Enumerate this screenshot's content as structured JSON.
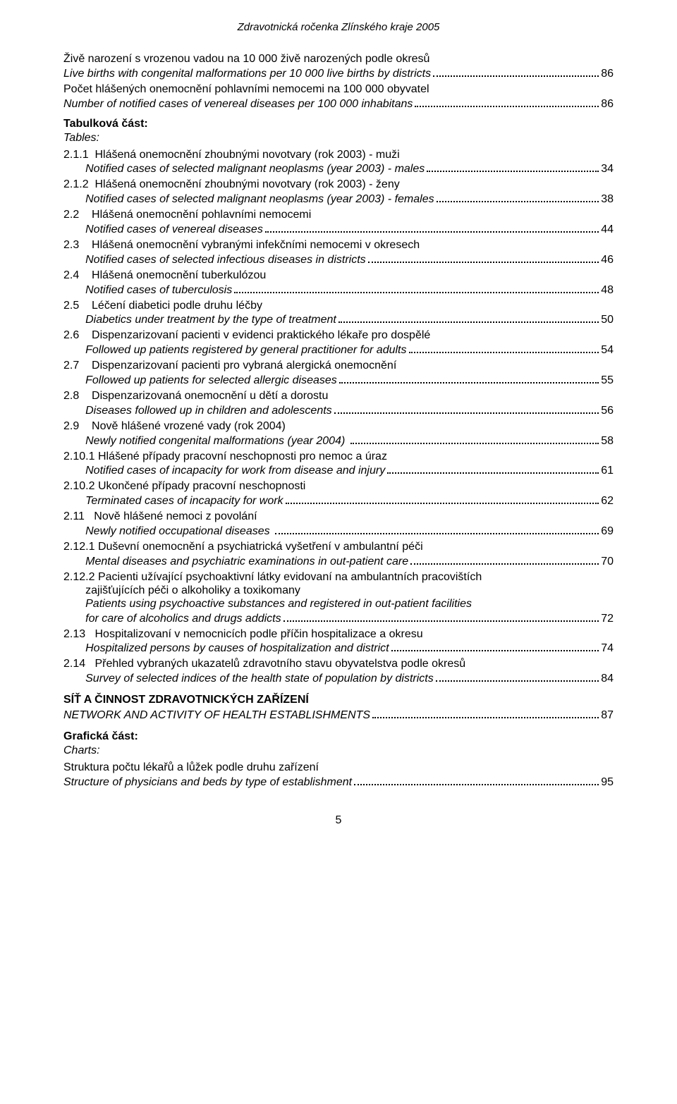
{
  "header": "Zdravotnická ročenka Zlínského kraje 2005",
  "pre_entries": [
    {
      "lines": [
        {
          "text": "Živě narození s vrozenou vadou na 10 000 živě narozených podle okresů",
          "italic": false
        }
      ],
      "last": {
        "text": "Live births with congenital malformations per 10 000 live births by districts",
        "italic": true,
        "page": "86"
      }
    },
    {
      "lines": [
        {
          "text": "Počet hlášených onemocnění pohlavními nemocemi na 100 000 obyvatel",
          "italic": false
        }
      ],
      "last": {
        "text": "Number of notified cases of venereal diseases per 100 000 inhabitans",
        "italic": true,
        "page": "86"
      }
    }
  ],
  "tabular_title": "Tabulková část:",
  "tabular_sub": "Tables:",
  "toc": [
    {
      "num": "2.1.1  ",
      "lines": [
        {
          "text": "Hlášená onemocnění zhoubnými novotvary (rok 2003) - muži",
          "italic": false
        }
      ],
      "last": {
        "text": "Notified cases of selected malignant neoplasms (year 2003) - males",
        "italic": true,
        "page": "34"
      }
    },
    {
      "num": "2.1.2  ",
      "lines": [
        {
          "text": "Hlášená onemocnění zhoubnými novotvary (rok 2003) - ženy",
          "italic": false
        }
      ],
      "last": {
        "text": "Notified cases of selected malignant neoplasms (year 2003) - females",
        "italic": true,
        "page": "38"
      }
    },
    {
      "num": "2.2    ",
      "lines": [
        {
          "text": "Hlášená onemocnění pohlavními nemocemi",
          "italic": false
        }
      ],
      "last": {
        "text": "Notified cases of venereal diseases",
        "italic": true,
        "page": "44"
      }
    },
    {
      "num": "2.3    ",
      "lines": [
        {
          "text": "Hlášená onemocnění vybranými infekčními nemocemi v okresech",
          "italic": false
        }
      ],
      "last": {
        "text": "Notified cases of selected infectious diseases in districts",
        "italic": true,
        "page": "46"
      }
    },
    {
      "num": "2.4    ",
      "lines": [
        {
          "text": "Hlášená onemocnění tuberkulózou",
          "italic": false
        }
      ],
      "last": {
        "text": "Notified cases of tuberculosis",
        "italic": true,
        "page": "48"
      }
    },
    {
      "num": "2.5    ",
      "lines": [
        {
          "text": "Léčení diabetici podle druhu léčby",
          "italic": false
        }
      ],
      "last": {
        "text": "Diabetics under treatment by the type of treatment",
        "italic": true,
        "page": "50"
      }
    },
    {
      "num": "2.6    ",
      "lines": [
        {
          "text": "Dispenzarizovaní pacienti v evidenci praktického lékaře pro dospělé",
          "italic": false
        }
      ],
      "last": {
        "text": "Followed up patients registered by general practitioner for adults",
        "italic": true,
        "page": "54"
      }
    },
    {
      "num": "2.7    ",
      "lines": [
        {
          "text": "Dispenzarizovaní pacienti pro vybraná alergická onemocnění",
          "italic": false
        }
      ],
      "last": {
        "text": "Followed up patients for selected allergic diseases",
        "italic": true,
        "page": "55"
      }
    },
    {
      "num": "2.8    ",
      "lines": [
        {
          "text": "Dispenzarizovaná onemocnění u dětí a dorostu",
          "italic": false
        }
      ],
      "last": {
        "text": "Diseases followed up in children and adolescents",
        "italic": true,
        "page": "56"
      }
    },
    {
      "num": "2.9    ",
      "lines": [
        {
          "text": "Nově hlášené vrozené vady (rok 2004)",
          "italic": false
        }
      ],
      "last": {
        "text": "Newly notified congenital malformations (year 2004) ",
        "italic": true,
        "page": "58"
      }
    },
    {
      "num": "2.10.1 ",
      "lines": [
        {
          "text": "Hlášené případy pracovní neschopnosti pro nemoc a úraz",
          "italic": false
        }
      ],
      "last": {
        "text": "Notified cases of incapacity for work from disease and injury",
        "italic": true,
        "page": "61"
      }
    },
    {
      "num": "2.10.2 ",
      "lines": [
        {
          "text": "Ukončené případy pracovní neschopnosti",
          "italic": false
        }
      ],
      "last": {
        "text": "Terminated cases of incapacity for work",
        "italic": true,
        "page": "62"
      }
    },
    {
      "num": "2.11   ",
      "lines": [
        {
          "text": "Nově hlášené nemoci z povolání",
          "italic": false
        }
      ],
      "last": {
        "text": "Newly notified occupational diseases ",
        "italic": true,
        "page": "69"
      }
    },
    {
      "num": "2.12.1 ",
      "lines": [
        {
          "text": "Duševní onemocnění a psychiatrická vyšetření v ambulantní péči",
          "italic": false
        }
      ],
      "last": {
        "text": "Mental diseases and psychiatric examinations in out-patient care",
        "italic": true,
        "page": "70"
      }
    },
    {
      "num": "2.12.2 ",
      "lines": [
        {
          "text": "Pacienti užívající psychoaktivní látky evidovaní na ambulantních pracovištích",
          "italic": false
        },
        {
          "text": "zajišťujících péči o alkoholiky a toxikomany",
          "italic": false
        },
        {
          "text": "Patients using psychoactive substances and registered in out-patient facilities",
          "italic": true
        }
      ],
      "last": {
        "text": "for care of alcoholics and drugs addicts",
        "italic": true,
        "page": "72"
      }
    },
    {
      "num": "2.13   ",
      "lines": [
        {
          "text": "Hospitalizovaní v nemocnicích podle příčin hospitalizace a okresu",
          "italic": false
        }
      ],
      "last": {
        "text": "Hospitalized persons by causes of hospitalization and district",
        "italic": true,
        "page": "74"
      }
    },
    {
      "num": "2.14   ",
      "lines": [
        {
          "text": "Přehled vybraných ukazatelů zdravotního stavu obyvatelstva podle okresů",
          "italic": false
        }
      ],
      "last": {
        "text": "Survey of selected indices of the health state of population by districts",
        "italic": true,
        "page": "84"
      }
    }
  ],
  "network_title": "SÍŤ A ČINNOST ZDRAVOTNICKÝCH ZAŘÍZENÍ",
  "network_sub": {
    "text": "NETWORK AND ACTIVITY OF HEALTH ESTABLISHMENTS",
    "page": "87"
  },
  "charts_title": "Grafická část:",
  "charts_sub": "Charts:",
  "charts_entry": {
    "lines": [
      {
        "text": "Struktura počtu lékařů a lůžek podle druhu zařízení",
        "italic": false
      }
    ],
    "last": {
      "text": "Structure of physicians and beds by type of establishment",
      "italic": true,
      "page": "95"
    }
  },
  "footer_page": "5"
}
